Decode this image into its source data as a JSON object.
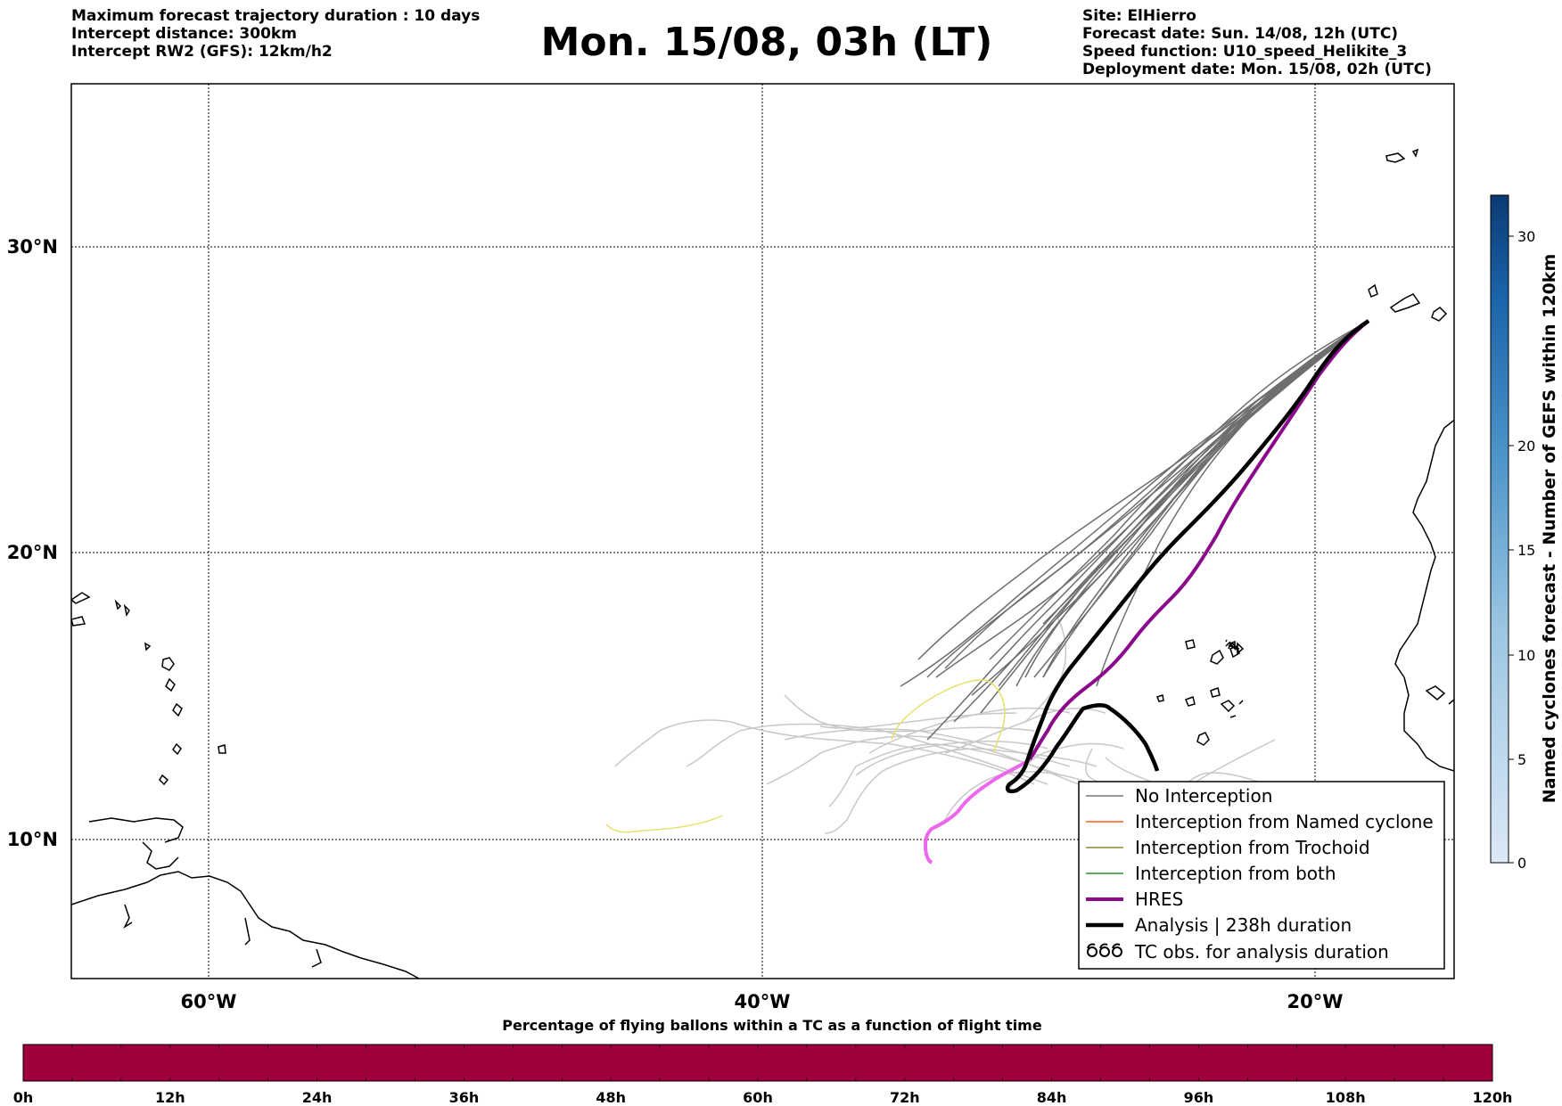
{
  "header_left": [
    "Maximum forecast trajectory duration : 10 days",
    "Intercept distance: 300km",
    "Intercept RW2 (GFS):  12km/h2"
  ],
  "title": "Mon. 15/08, 03h (LT)",
  "header_right": [
    "Site: ElHierro",
    "Forecast date: Sun. 14/08, 12h (UTC)",
    "Speed function: U10_speed_Helikite_3",
    "Deployment date: Mon. 15/08, 02h (UTC)"
  ],
  "map": {
    "lon_labels": [
      "60°W",
      "40°W",
      "20°W"
    ],
    "lat_labels": [
      "30°N",
      "20°N",
      "10°N"
    ]
  },
  "legend": {
    "items": [
      {
        "label": "No Interception",
        "color": "#777777"
      },
      {
        "label": "Interception from Named cyclone",
        "color": "#ff5a1f"
      },
      {
        "label": "Interception from Trochoid",
        "color": "#8a8a2a"
      },
      {
        "label": "Interception from both",
        "color": "#2f8f2f"
      },
      {
        "label": "HRES",
        "color": "#8b0a8b"
      },
      {
        "label": "Analysis | 238h duration",
        "color": "#000000"
      },
      {
        "label": "TC obs. for analysis duration",
        "color": "#000000",
        "icon": "tc-symbol-icon"
      }
    ]
  },
  "colorbar_right": {
    "label": "Named cyclones forecast - Number of GEFS within 120km",
    "ticks": [
      "0",
      "5",
      "10",
      "15",
      "20",
      "30"
    ]
  },
  "colorbar_bottom": {
    "title": "Percentage of flying ballons within a TC as a function of flight time",
    "ticks": [
      "0h",
      "12h",
      "24h",
      "36h",
      "48h",
      "60h",
      "72h",
      "84h",
      "96h",
      "108h",
      "120h"
    ],
    "fill_color": "#a0003c"
  },
  "colors": {
    "hres": "#8b0a8b",
    "hres_light": "#ee66ee",
    "analysis": "#000000",
    "ensemble_dark": "#6e6e6e",
    "ensemble_light": "#c8c8c8",
    "trochoid": "#e8e06a"
  }
}
